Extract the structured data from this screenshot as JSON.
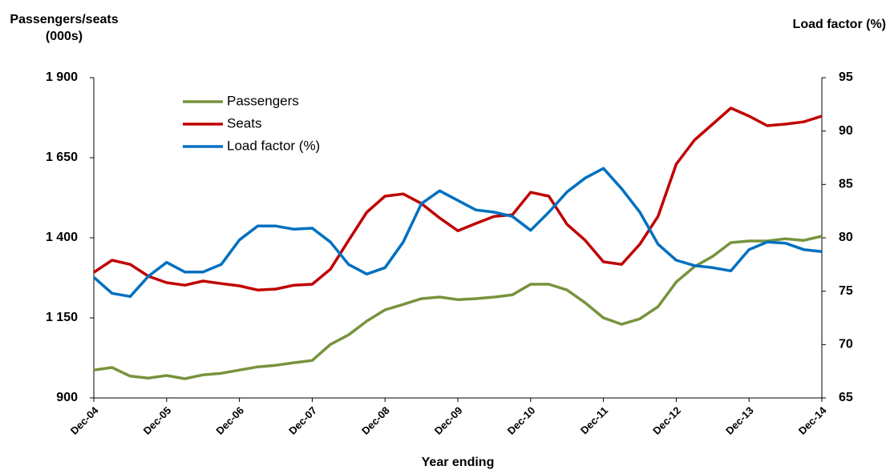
{
  "chart_data": {
    "type": "line",
    "y_label": "Passengers/seats (000s)",
    "y2_label": "Load factor (%)",
    "x_label": "Year ending",
    "categories": [
      "Dec-04",
      null,
      null,
      null,
      "Dec-05",
      null,
      null,
      null,
      "Dec-06",
      null,
      null,
      null,
      "Dec-07",
      null,
      null,
      null,
      "Dec-08",
      null,
      null,
      null,
      "Dec-09",
      null,
      null,
      null,
      "Dec-10",
      null,
      null,
      null,
      "Dec-11",
      null,
      null,
      null,
      "Dec-12",
      null,
      null,
      null,
      "Dec-13",
      null,
      null,
      null,
      "Dec-14"
    ],
    "series": [
      {
        "name": "Passengers",
        "color": "#77933c",
        "values": [
          987,
          995,
          968,
          962,
          970,
          960,
          972,
          977,
          987,
          997,
          1002,
          1010,
          1017,
          1067,
          1097,
          1140,
          1175,
          1192,
          1210,
          1215,
          1207,
          1210,
          1215,
          1222,
          1255,
          1255,
          1237,
          1197,
          1150,
          1130,
          1147,
          1185,
          1262,
          1310,
          1342,
          1385,
          1390,
          1390,
          1397,
          1392,
          1405
        ]
      },
      {
        "name": "Seats",
        "color": "#c00000",
        "values": [
          1292,
          1330,
          1317,
          1280,
          1260,
          1252,
          1265,
          1257,
          1250,
          1237,
          1240,
          1252,
          1255,
          1302,
          1392,
          1480,
          1530,
          1537,
          1507,
          1462,
          1422,
          1445,
          1467,
          1472,
          1542,
          1530,
          1442,
          1392,
          1325,
          1317,
          1380,
          1467,
          1630,
          1705,
          1755,
          1805,
          1780,
          1750,
          1755,
          1762,
          1780
        ]
      },
      {
        "name": "Load factor (%)",
        "color": "#0070c0",
        "axis": "y2",
        "values": [
          76.3,
          74.8,
          74.5,
          76.4,
          77.7,
          76.8,
          76.8,
          77.5,
          79.8,
          81.1,
          81.1,
          80.8,
          80.9,
          79.6,
          77.5,
          76.6,
          77.2,
          79.6,
          83.2,
          84.4,
          83.5,
          82.6,
          82.4,
          82.0,
          80.7,
          82.4,
          84.3,
          85.6,
          86.5,
          84.6,
          82.4,
          79.4,
          77.9,
          77.4,
          77.2,
          76.9,
          78.9,
          79.6,
          79.5,
          78.9,
          78.7
        ]
      }
    ],
    "ylim": [
      900,
      1900
    ],
    "yticks": [
      {
        "value": 900,
        "label": "900"
      },
      {
        "value": 1150,
        "label": "1 150"
      },
      {
        "value": 1400,
        "label": "1 400"
      },
      {
        "value": 1650,
        "label": "1 650"
      },
      {
        "value": 1900,
        "label": "1 900"
      }
    ],
    "y2lim": [
      65,
      95
    ],
    "y2ticks": [
      65,
      70,
      75,
      80,
      85,
      90,
      95
    ],
    "grid": false,
    "legend": "upper left"
  }
}
